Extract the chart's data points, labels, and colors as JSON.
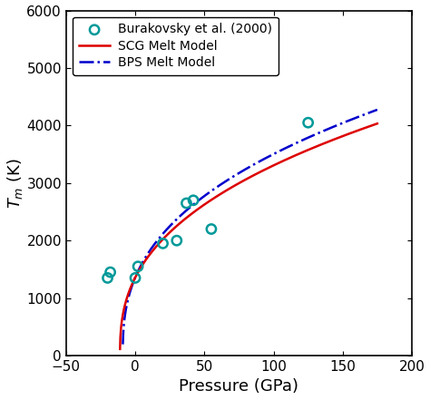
{
  "title": "",
  "xlabel": "Pressure (GPa)",
  "ylabel": "$T_m$ (K)",
  "xlim": [
    -50,
    200
  ],
  "ylim": [
    0,
    6000
  ],
  "xticks": [
    -50,
    0,
    50,
    100,
    150,
    200
  ],
  "yticks": [
    0,
    1000,
    2000,
    3000,
    4000,
    5000,
    6000
  ],
  "scatter_x": [
    -20,
    -18,
    0,
    2,
    20,
    30,
    37,
    42,
    55,
    125
  ],
  "scatter_y": [
    1350,
    1450,
    1350,
    1550,
    1950,
    2000,
    2650,
    2700,
    2200,
    4050
  ],
  "scatter_color": "#009999",
  "scatter_label": "Burakovsky et al. (2000)",
  "scg_label": "SCG Melt Model",
  "bps_label": "BPS Melt Model",
  "scg_color": "#dd0000",
  "bps_color": "#0000cc",
  "background": "#ffffff",
  "legend_fontsize": 10,
  "axis_fontsize": 13,
  "tick_fontsize": 11,
  "scg_T0": 1358.0,
  "scg_P0": 22.3,
  "scg_exp": 0.47,
  "bps_T0": 600.0,
  "bps_P0": 22.3,
  "bps_exp": 0.6,
  "scg_Pstart": -25,
  "scg_Pend": 175,
  "bps_Pstart": -28,
  "bps_Pend": 175
}
